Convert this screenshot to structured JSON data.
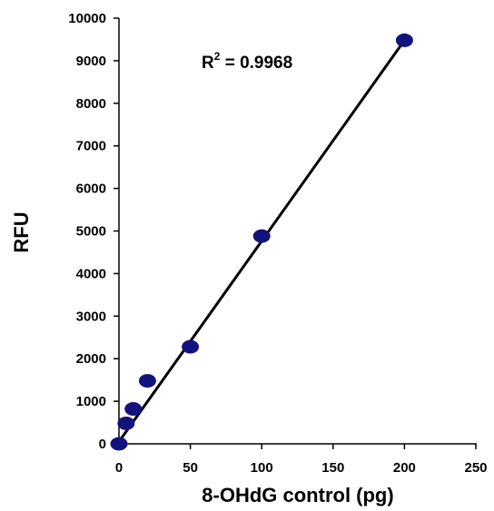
{
  "chart_data": {
    "type": "scatter",
    "xlabel": "8-OHdG control (pg)",
    "ylabel": "RFU",
    "xlim": [
      0,
      250
    ],
    "ylim": [
      0,
      10000
    ],
    "x_ticks": [
      0,
      50,
      100,
      150,
      200,
      250
    ],
    "y_ticks": [
      0,
      1000,
      2000,
      3000,
      4000,
      5000,
      6000,
      7000,
      8000,
      9000,
      10000
    ],
    "grid": false,
    "series": [
      {
        "points": [
          {
            "x": 0,
            "y": 0
          },
          {
            "x": 5,
            "y": 480
          },
          {
            "x": 10,
            "y": 820
          },
          {
            "x": 20,
            "y": 1480
          },
          {
            "x": 50,
            "y": 2280
          },
          {
            "x": 100,
            "y": 4880
          },
          {
            "x": 200,
            "y": 9480
          }
        ]
      }
    ],
    "trendline": {
      "type": "linear",
      "from": {
        "x": 0,
        "y": 50
      },
      "to": {
        "x": 200,
        "y": 9480
      }
    },
    "annotation": {
      "prefix": "R",
      "superscript": "2",
      "value_text": " = 0.9968"
    },
    "colors": {
      "marker": "#13137d",
      "line": "#000000"
    }
  }
}
